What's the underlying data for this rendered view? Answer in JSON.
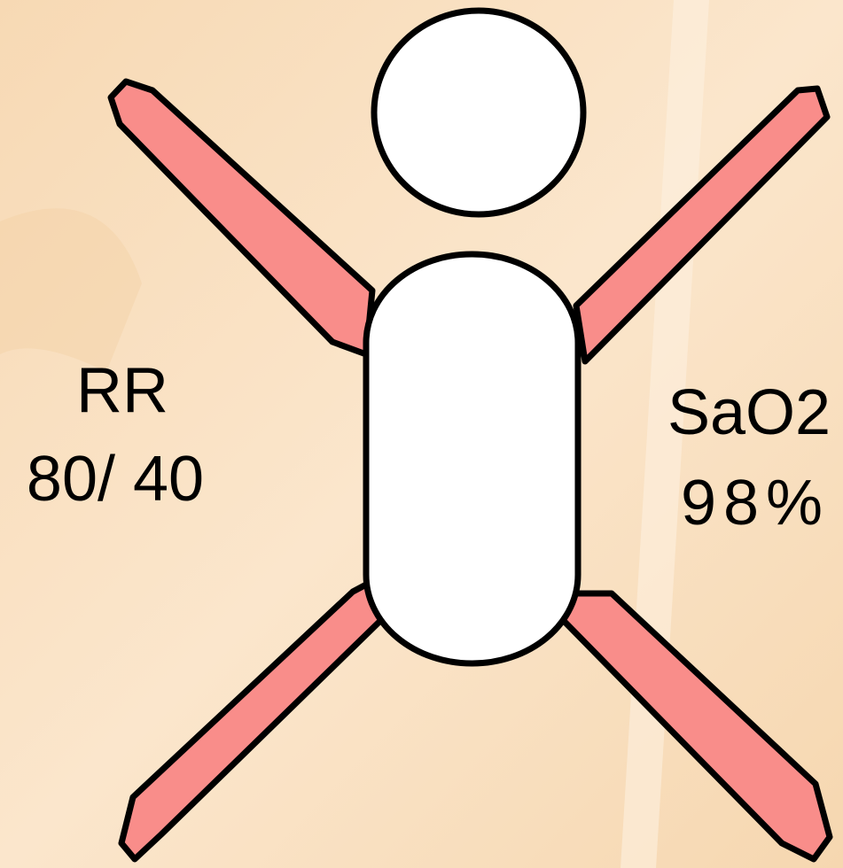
{
  "labels": {
    "left": {
      "title": "RR",
      "value": "80/ 40"
    },
    "right": {
      "title": "SaO2",
      "value": "98%"
    }
  }
}
